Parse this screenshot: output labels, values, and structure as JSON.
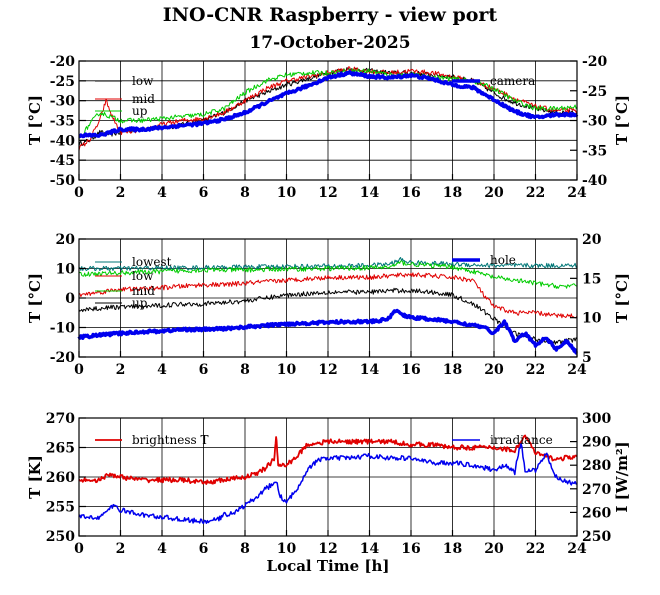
{
  "figure": {
    "title": "INO-CNR Raspberry - view port",
    "date": "17-October-2025",
    "xlabel": "Local Time [h]"
  },
  "chart_data": [
    {
      "type": "line",
      "id": "top",
      "x_ticks": [
        0,
        2,
        4,
        6,
        8,
        10,
        12,
        14,
        16,
        18,
        20,
        22,
        24
      ],
      "xlim": [
        0,
        24
      ],
      "grid": true,
      "legend": "top-left and top-right",
      "y_left": {
        "label": "T [°C]",
        "lim": [
          -50,
          -20
        ],
        "ticks": [
          -50,
          -45,
          -40,
          -35,
          -30,
          -25,
          -20
        ]
      },
      "y_right": {
        "label": "T [°C]",
        "lim": [
          -40,
          -20
        ],
        "ticks": [
          -40,
          -35,
          -30,
          -25,
          -20
        ]
      },
      "series": [
        {
          "name": "low",
          "color": "#000000",
          "axis": "left",
          "width": 1,
          "x": [
            0,
            0.5,
            1,
            1.5,
            2,
            3,
            4,
            5,
            6,
            7,
            8,
            9,
            10,
            11,
            12,
            13,
            14,
            15,
            16,
            17,
            18,
            19,
            20,
            20.5,
            21,
            22,
            23,
            24
          ],
          "y": [
            -41,
            -40,
            -38,
            -38.5,
            -38,
            -37,
            -37,
            -36,
            -35,
            -33,
            -30,
            -28,
            -26,
            -24.5,
            -23,
            -22,
            -22.5,
            -23,
            -23,
            -23.5,
            -24,
            -25,
            -28,
            -29.5,
            -30.5,
            -32,
            -33,
            -33
          ]
        },
        {
          "name": "mid",
          "color": "#e00000",
          "axis": "left",
          "width": 1,
          "x": [
            0,
            0.5,
            1,
            1.3,
            1.6,
            2,
            3,
            4,
            5,
            6,
            7,
            8,
            9,
            10,
            11,
            12,
            13,
            14,
            15,
            16,
            17,
            18,
            19,
            20,
            21,
            22,
            23,
            24
          ],
          "y": [
            -42,
            -40,
            -35,
            -30,
            -34,
            -38,
            -37.5,
            -36,
            -35,
            -34.5,
            -33,
            -30,
            -27,
            -25,
            -24,
            -23,
            -22,
            -22.5,
            -23,
            -22.5,
            -23,
            -24,
            -25,
            -27,
            -29.5,
            -31.5,
            -32.5,
            -32.5
          ]
        },
        {
          "name": "up",
          "color": "#00cc00",
          "axis": "left",
          "width": 1,
          "x": [
            0,
            0.5,
            1,
            1.5,
            2,
            3,
            4,
            5,
            6,
            7,
            8,
            9,
            10,
            11,
            12,
            13,
            14,
            15,
            16,
            17,
            18,
            19,
            20,
            21,
            22,
            23,
            24
          ],
          "y": [
            -40,
            -36,
            -33,
            -34,
            -35,
            -35,
            -34.5,
            -34,
            -33.5,
            -32,
            -28,
            -25,
            -23.5,
            -23,
            -23,
            -22.5,
            -22.5,
            -23.5,
            -23.5,
            -24,
            -24.5,
            -25,
            -27,
            -30,
            -32,
            -32,
            -31.5
          ]
        },
        {
          "name": "camera",
          "color": "#0000ee",
          "axis": "right",
          "width": 3.5,
          "x": [
            0,
            1,
            2,
            3,
            4,
            5,
            6,
            7,
            8,
            9,
            10,
            11,
            12,
            13,
            14,
            15,
            16,
            17,
            18,
            19,
            20,
            21,
            22,
            23,
            24
          ],
          "y": [
            -32.5,
            -32.5,
            -31.5,
            -31.5,
            -31.2,
            -30.8,
            -30.5,
            -29.8,
            -28.7,
            -27,
            -25.5,
            -24.2,
            -22.8,
            -22,
            -22.6,
            -22.8,
            -22.4,
            -23,
            -24,
            -24.5,
            -26.5,
            -28.5,
            -29.5,
            -29,
            -29
          ]
        }
      ]
    },
    {
      "type": "line",
      "id": "middle",
      "x_ticks": [
        0,
        2,
        4,
        6,
        8,
        10,
        12,
        14,
        16,
        18,
        20,
        22,
        24
      ],
      "xlim": [
        0,
        24
      ],
      "grid": true,
      "legend": "top-left and top-right",
      "y_left": {
        "label": "T [°C]",
        "lim": [
          -20,
          20
        ],
        "ticks": [
          -20,
          -10,
          0,
          10,
          20
        ]
      },
      "y_right": {
        "label": "T [°C]",
        "lim": [
          5,
          20
        ],
        "ticks": [
          5,
          10,
          15,
          20
        ]
      },
      "series": [
        {
          "name": "lowest",
          "color": "#007777",
          "axis": "left",
          "width": 1,
          "x": [
            0,
            2,
            4,
            6,
            8,
            10,
            12,
            14,
            15,
            15.5,
            16,
            18,
            20,
            22,
            24
          ],
          "y": [
            10,
            10,
            10.2,
            10.3,
            10.5,
            10.7,
            10.8,
            11,
            11.5,
            13,
            12,
            11.5,
            11,
            11,
            11
          ]
        },
        {
          "name": "low",
          "color": "#e00000",
          "axis": "left",
          "width": 1,
          "x": [
            0,
            1,
            2,
            3,
            4,
            5,
            6,
            7,
            8,
            9,
            10,
            11,
            12,
            13,
            14,
            15,
            16,
            17,
            18,
            19,
            19.5,
            20,
            21,
            22,
            23,
            24
          ],
          "y": [
            1,
            2,
            3,
            3,
            3.5,
            4,
            4.5,
            4.5,
            5,
            5.5,
            6,
            6.5,
            7,
            7,
            7,
            7.5,
            8,
            7.5,
            7,
            6,
            1,
            -3,
            -5,
            -5,
            -6,
            -6
          ]
        },
        {
          "name": "mid",
          "color": "#00cc00",
          "axis": "left",
          "width": 1,
          "x": [
            0,
            2,
            4,
            6,
            8,
            10,
            12,
            14,
            15,
            15.5,
            16,
            18,
            19,
            20,
            21,
            22,
            23,
            24
          ],
          "y": [
            8,
            8.5,
            9,
            9.5,
            9.5,
            9.8,
            10,
            10.2,
            10.5,
            12,
            11.5,
            10.5,
            9,
            7,
            6,
            5,
            4,
            4
          ]
        },
        {
          "name": "up",
          "color": "#000000",
          "axis": "left",
          "width": 1,
          "x": [
            0,
            1,
            2,
            3,
            4,
            5,
            6,
            7,
            8,
            9,
            10,
            11,
            12,
            13,
            14,
            15,
            16,
            17,
            18,
            19,
            20,
            21,
            22,
            23,
            24
          ],
          "y": [
            -4,
            -3.5,
            -3,
            -3,
            -2.5,
            -2,
            -2,
            -1.5,
            -1,
            0,
            1,
            1.5,
            2,
            2,
            2,
            2.5,
            2.5,
            2,
            1,
            -2,
            -7,
            -12,
            -14,
            -15,
            -14
          ]
        },
        {
          "name": "hole",
          "color": "#0000ee",
          "axis": "right",
          "width": 3.5,
          "x": [
            0,
            1,
            2,
            3,
            4,
            5,
            6,
            7,
            8,
            9,
            10,
            11,
            12,
            13,
            14,
            14.5,
            15,
            15.2,
            15.5,
            16,
            17,
            18,
            19,
            19.5,
            20,
            20.5,
            21,
            21.5,
            22,
            22.5,
            23,
            23.5,
            24
          ],
          "y": [
            7.5,
            7.8,
            8,
            8.2,
            8.3,
            8.5,
            8.5,
            8.6,
            8.8,
            9,
            9.2,
            9.3,
            9.4,
            9.5,
            9.5,
            9.6,
            10,
            11,
            10.5,
            10,
            9.8,
            9.5,
            9,
            8.8,
            8,
            9.5,
            7,
            8,
            6.5,
            7.5,
            6,
            7,
            5.5
          ]
        }
      ]
    },
    {
      "type": "line",
      "id": "bottom",
      "x_ticks": [
        0,
        2,
        4,
        6,
        8,
        10,
        12,
        14,
        16,
        18,
        20,
        22,
        24
      ],
      "xlim": [
        0,
        24
      ],
      "grid": true,
      "legend": "top-left and top-right",
      "y_left": {
        "label": "T [K]",
        "lim": [
          250,
          270
        ],
        "ticks": [
          250,
          255,
          260,
          265,
          270
        ]
      },
      "y_right": {
        "label": "I [W/m²]",
        "lim": [
          250,
          300
        ],
        "ticks": [
          250,
          260,
          270,
          280,
          290,
          300
        ]
      },
      "series": [
        {
          "name": "brightness T",
          "color": "#e00000",
          "axis": "left",
          "width": 1.8,
          "x": [
            0,
            1,
            1.5,
            2,
            3,
            4,
            5,
            6,
            7,
            8,
            8.5,
            9,
            9.4,
            9.5,
            9.6,
            10,
            10.5,
            11,
            12,
            13,
            14,
            15,
            16,
            17,
            18,
            19,
            20,
            21,
            21.5,
            22,
            23,
            24
          ],
          "y": [
            259.5,
            259.5,
            260.5,
            260,
            259.5,
            259.5,
            259.5,
            259,
            259.5,
            260,
            260.5,
            261.5,
            263,
            267,
            262,
            262,
            263.5,
            265.5,
            266,
            266,
            266,
            266,
            265.5,
            265.5,
            265,
            265,
            265,
            264.5,
            267,
            264,
            263,
            263.5
          ]
        },
        {
          "name": "irradiance",
          "color": "#0000ee",
          "axis": "right",
          "width": 1.5,
          "x": [
            0,
            1,
            1.7,
            2,
            3,
            4,
            5,
            6,
            6.7,
            7,
            7.5,
            8,
            8.5,
            9,
            9.5,
            9.7,
            10,
            10.5,
            11,
            11.5,
            12,
            13,
            14,
            15,
            16,
            17,
            18,
            19,
            20,
            20.5,
            21,
            21.3,
            21.5,
            22,
            22.5,
            23,
            23.5,
            24
          ],
          "y": [
            258,
            258,
            263,
            261,
            259,
            258,
            257,
            256,
            257,
            259,
            260,
            263,
            266,
            270,
            273,
            267,
            264,
            270,
            278,
            282,
            283,
            283,
            284,
            283,
            283,
            281,
            281,
            280,
            278,
            280,
            277,
            290,
            277,
            278,
            285,
            275,
            273,
            272
          ]
        }
      ]
    }
  ]
}
